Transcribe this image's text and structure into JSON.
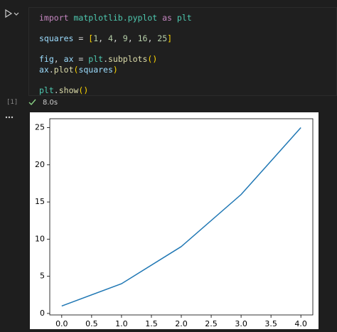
{
  "cell": {
    "code": [
      [
        {
          "text": "import",
          "color": "#c586c0"
        },
        {
          "text": " ",
          "color": "#d4d4d4"
        },
        {
          "text": "matplotlib.pyplot",
          "color": "#4ec9b0"
        },
        {
          "text": " ",
          "color": "#d4d4d4"
        },
        {
          "text": "as",
          "color": "#c586c0"
        },
        {
          "text": " ",
          "color": "#d4d4d4"
        },
        {
          "text": "plt",
          "color": "#4ec9b0"
        }
      ],
      [],
      [
        {
          "text": "squares",
          "color": "#9cdcfe"
        },
        {
          "text": " = ",
          "color": "#d4d4d4"
        },
        {
          "text": "[",
          "color": "#ffd700"
        },
        {
          "text": "1",
          "color": "#b5cea8"
        },
        {
          "text": ", ",
          "color": "#d4d4d4"
        },
        {
          "text": "4",
          "color": "#b5cea8"
        },
        {
          "text": ", ",
          "color": "#d4d4d4"
        },
        {
          "text": "9",
          "color": "#b5cea8"
        },
        {
          "text": ", ",
          "color": "#d4d4d4"
        },
        {
          "text": "16",
          "color": "#b5cea8"
        },
        {
          "text": ", ",
          "color": "#d4d4d4"
        },
        {
          "text": "25",
          "color": "#b5cea8"
        },
        {
          "text": "]",
          "color": "#ffd700"
        }
      ],
      [],
      [
        {
          "text": "fig",
          "color": "#9cdcfe"
        },
        {
          "text": ", ",
          "color": "#d4d4d4"
        },
        {
          "text": "ax",
          "color": "#9cdcfe"
        },
        {
          "text": " = ",
          "color": "#d4d4d4"
        },
        {
          "text": "plt",
          "color": "#4ec9b0"
        },
        {
          "text": ".",
          "color": "#d4d4d4"
        },
        {
          "text": "subplots",
          "color": "#dcdcaa"
        },
        {
          "text": "()",
          "color": "#ffd700"
        }
      ],
      [
        {
          "text": "ax",
          "color": "#9cdcfe"
        },
        {
          "text": ".",
          "color": "#d4d4d4"
        },
        {
          "text": "plot",
          "color": "#dcdcaa"
        },
        {
          "text": "(",
          "color": "#ffd700"
        },
        {
          "text": "squares",
          "color": "#9cdcfe"
        },
        {
          "text": ")",
          "color": "#ffd700"
        }
      ],
      [],
      [
        {
          "text": "plt",
          "color": "#4ec9b0"
        },
        {
          "text": ".",
          "color": "#d4d4d4"
        },
        {
          "text": "show",
          "color": "#dcdcaa"
        },
        {
          "text": "()",
          "color": "#ffd700"
        }
      ]
    ],
    "execution_count": "[1]",
    "duration": "8.0s"
  },
  "chart_data": {
    "type": "line",
    "x": [
      0,
      1,
      2,
      3,
      4
    ],
    "series": [
      {
        "color": "#1f77b4",
        "values": [
          1,
          4,
          9,
          16,
          25
        ]
      }
    ],
    "xlim": [
      -0.2,
      4.2
    ],
    "xticks": [
      {
        "value": 0,
        "label": "0.0"
      },
      0.5,
      {
        "value": 1,
        "label": "1.0"
      },
      1.5,
      {
        "value": 2,
        "label": "2.0"
      },
      2.5,
      {
        "value": 3,
        "label": "3.0"
      },
      3.5,
      {
        "value": 4,
        "label": "4.0"
      }
    ],
    "ylim": [
      -0.2,
      26.2
    ],
    "yticks": [
      0,
      5,
      10,
      15,
      20,
      25
    ]
  }
}
